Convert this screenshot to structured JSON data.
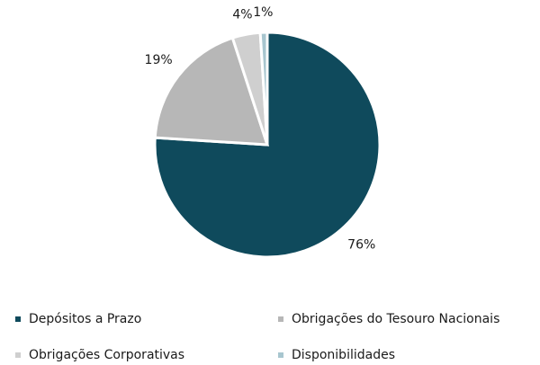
{
  "chart_data": {
    "type": "pie",
    "categories": [
      "Depósitos a Prazo",
      "Obrigações do Tesouro Nacionais",
      "Obrigações Corporativas",
      "Disponibilidades"
    ],
    "values": [
      76,
      19,
      4,
      1
    ],
    "value_labels": [
      "76%",
      "19%",
      "4%",
      "1%"
    ],
    "colors": [
      "#0f4a5c",
      "#b7b7b7",
      "#cfcfcf",
      "#a8c6cf"
    ],
    "legend": "bottom"
  }
}
